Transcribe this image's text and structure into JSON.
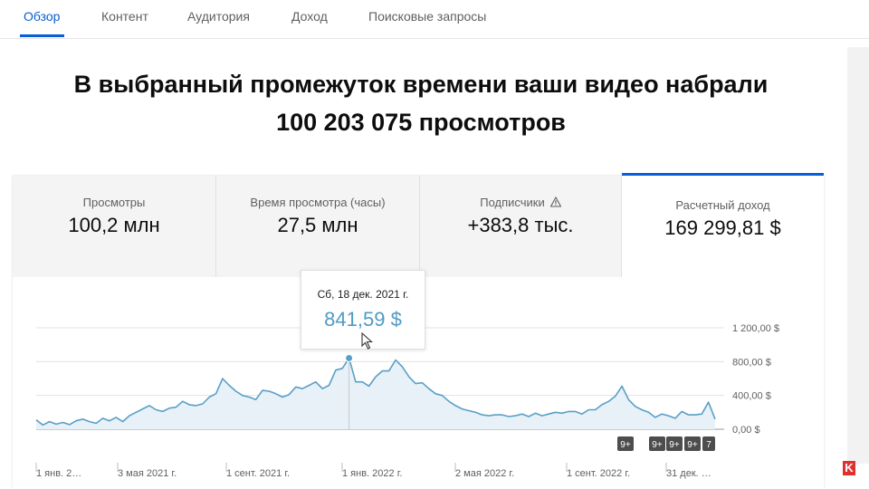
{
  "nav": {
    "tabs": [
      {
        "label": "Обзор",
        "active": true
      },
      {
        "label": "Контент",
        "active": false
      },
      {
        "label": "Аудитория",
        "active": false
      },
      {
        "label": "Доход",
        "active": false
      },
      {
        "label": "Поисковые запросы",
        "active": false
      }
    ]
  },
  "headline": {
    "line1": "В выбранный промежуток времени ваши видео набрали",
    "line2": "100 203 075 просмотров"
  },
  "metrics": [
    {
      "label": "Просмотры",
      "value": "100,2 млн"
    },
    {
      "label": "Время просмотра (часы)",
      "value": "27,5 млн"
    },
    {
      "label": "Подписчики",
      "value": "+383,8 тыс.",
      "icon": "warning-icon"
    },
    {
      "label": "Расчетный доход",
      "value": "169 299,81 $",
      "selected": true
    }
  ],
  "tooltip": {
    "date": "Сб, 18 дек. 2021 г.",
    "value": "841,59 $"
  },
  "badges": [
    "9+",
    "9+",
    "9+",
    "9+",
    "7"
  ],
  "colors": {
    "accent": "#065fd4",
    "line": "#5a9fc6",
    "fill": "#e7f1f7",
    "badge": "#4d4d4d"
  },
  "chart_data": {
    "type": "area",
    "y_ticks": [
      "1 200,00 $",
      "800,00 $",
      "400,00 $",
      "0,00 $"
    ],
    "y_tick_values": [
      1200,
      800,
      400,
      0
    ],
    "ylim": [
      0,
      1200
    ],
    "x_tick_labels": [
      "1 янв. 2…",
      "3 мая 2021 г.",
      "1 сент. 2021 г.",
      "1 янв. 2022 г.",
      "2 мая 2022 г.",
      "1 сент. 2022 г.",
      "31 дек. …"
    ],
    "series": [
      {
        "values": [
          110,
          50,
          90,
          60,
          80,
          55,
          100,
          120,
          90,
          70,
          130,
          100,
          140,
          90,
          160,
          200,
          240,
          280,
          230,
          210,
          250,
          260,
          330,
          290,
          280,
          300,
          380,
          420,
          600,
          520,
          450,
          400,
          380,
          350,
          460,
          450,
          420,
          380,
          410,
          500,
          480,
          520,
          560,
          480,
          520,
          700,
          720,
          842,
          560,
          560,
          510,
          620,
          690,
          690,
          820,
          740,
          620,
          540,
          550,
          480,
          420,
          400,
          330,
          280,
          240,
          220,
          200,
          170,
          160,
          170,
          170,
          150,
          160,
          180,
          150,
          190,
          160,
          180,
          200,
          190,
          210,
          210,
          180,
          230,
          230,
          290,
          330,
          390,
          510,
          350,
          270,
          230,
          200,
          140,
          180,
          160,
          130,
          210,
          170,
          170,
          180,
          320,
          120
        ]
      }
    ],
    "highlight": {
      "date": "Сб, 18 дек. 2021 г.",
      "value": 841.59
    }
  }
}
